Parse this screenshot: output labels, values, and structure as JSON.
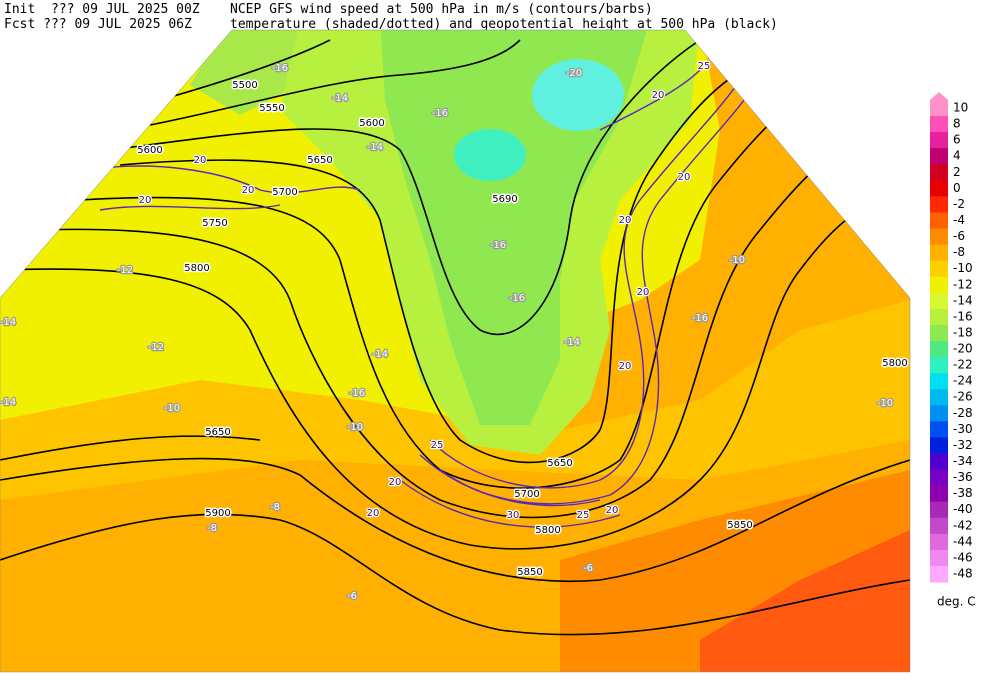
{
  "header": {
    "init": "Init  ??? 09 JUL 2025 00Z",
    "fcst": "Fcst ??? 09 JUL 2025 06Z",
    "line1": "NCEP GFS wind speed at 500 hPa in m/s (contours/barbs)",
    "line2": "temperature (shaded/dotted) and geopotential height at 500 hPa (black)"
  },
  "height_contour_labels": [
    "5500",
    "5550",
    "5600",
    "5600",
    "5650",
    "5700",
    "5750",
    "5800",
    "5650",
    "5900",
    "5690",
    "5700",
    "5650",
    "5800",
    "5850",
    "5850",
    "5800"
  ],
  "temperature_labels": [
    "-16",
    "-14",
    "-16",
    "-20",
    "-14",
    "-16",
    "-16",
    "-14",
    "-12",
    "-10",
    "-10",
    "-14",
    "-16",
    "-10",
    "-16",
    "-10",
    "-8",
    "-8",
    "-6",
    "-6",
    "-12",
    "-14",
    "-14"
  ],
  "wind_speed_labels": [
    "20",
    "20",
    "20",
    "20",
    "25",
    "20",
    "20",
    "20",
    "25",
    "20",
    "20",
    "30",
    "25",
    "20",
    "20"
  ],
  "colorbar": {
    "labels": [
      10,
      8,
      6,
      4,
      2,
      0,
      -2,
      -4,
      -6,
      -8,
      -10,
      -12,
      -14,
      -16,
      -18,
      -20,
      -22,
      -24,
      -26,
      -28,
      -30,
      -32,
      -34,
      -36,
      -38,
      -40,
      -42,
      -44,
      -46,
      -48
    ],
    "colors": [
      "#ff90c8",
      "#ff50b8",
      "#e8209c",
      "#c00070",
      "#d00020",
      "#e80000",
      "#ff2800",
      "#ff6000",
      "#ff8c00",
      "#ffb000",
      "#ffd000",
      "#f0f000",
      "#d8f830",
      "#b8f040",
      "#90e850",
      "#50e880",
      "#30f0c0",
      "#00e0f0",
      "#00b8f0",
      "#0090f0",
      "#0050f0",
      "#0020e0",
      "#5000d0",
      "#7800c0",
      "#9000b0",
      "#a828b8",
      "#c448cc",
      "#e068e0",
      "#f088f0",
      "#ffa8ff"
    ],
    "top_arrow_color": "#ff90c8",
    "unit": "deg. C"
  }
}
